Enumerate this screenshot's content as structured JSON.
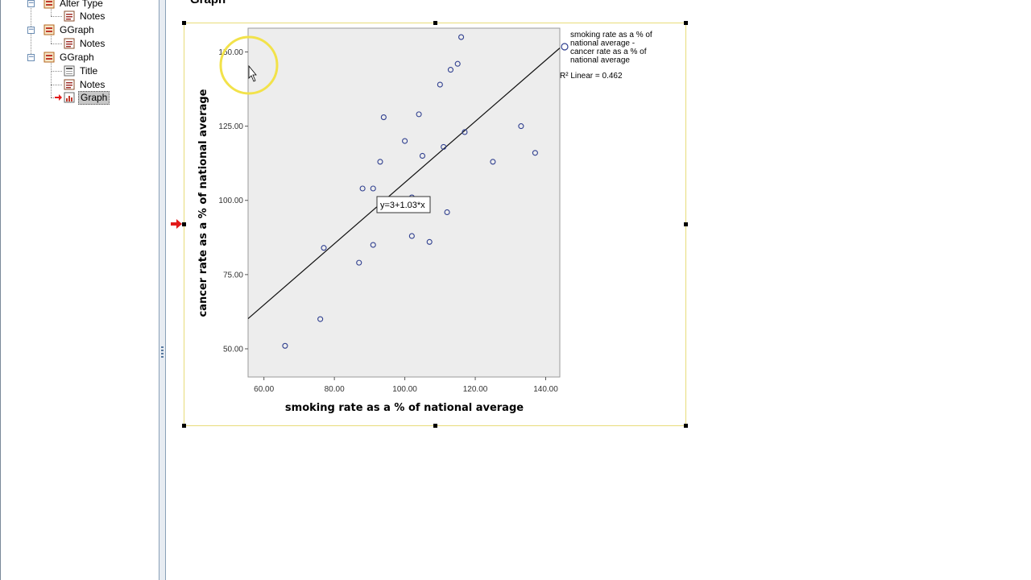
{
  "outline": {
    "items": [
      {
        "label": "Alter Type",
        "icon": "procedure-icon",
        "level": 1,
        "expanded": true
      },
      {
        "label": "Notes",
        "icon": "notes-icon",
        "level": 2
      },
      {
        "label": "GGraph",
        "icon": "procedure-icon",
        "level": 1,
        "expanded": true
      },
      {
        "label": "Notes",
        "icon": "notes-icon",
        "level": 2
      },
      {
        "label": "GGraph",
        "icon": "procedure-icon",
        "level": 1,
        "expanded": true
      },
      {
        "label": "Title",
        "icon": "title-icon",
        "level": 2
      },
      {
        "label": "Notes",
        "icon": "notes-icon",
        "level": 2
      },
      {
        "label": "Graph",
        "icon": "graph-icon",
        "level": 2,
        "selected": true
      }
    ]
  },
  "content": {
    "heading": "Graph"
  },
  "colors": {
    "plot_background": "#ededed",
    "marker": "#2f3f8f",
    "frame_border": "#e8dc7a",
    "highlight_ring": "#f2e24a",
    "arrow_red": "#e21a1a"
  },
  "chart_data": {
    "type": "scatter",
    "xlabel": "smoking rate as a % of national average",
    "ylabel": "cancer rate as a % of national average",
    "xticks": [
      "60.00",
      "80.00",
      "100.00",
      "120.00",
      "140.00"
    ],
    "yticks": [
      "50.00",
      "75.00",
      "100.00",
      "125.00",
      "150.00"
    ],
    "xlim": [
      55.5,
      144
    ],
    "ylim": [
      40.5,
      158
    ],
    "grid": false,
    "series": [
      {
        "name": "smoking rate as a % of national average - cancer rate as a % of national average",
        "x": [
          66,
          76,
          77,
          87,
          88,
          91,
          91,
          93,
          94,
          100,
          102,
          102,
          104,
          105,
          107,
          110,
          111,
          112,
          113,
          115,
          116,
          117,
          125,
          133,
          137
        ],
        "y": [
          51,
          60,
          84,
          79,
          104,
          104,
          85,
          113,
          128,
          120,
          101,
          88,
          129,
          115,
          86,
          139,
          118,
          96,
          144,
          146,
          155,
          123,
          113,
          125,
          116
        ]
      }
    ],
    "fit_line": {
      "intercept": 3,
      "slope": 1.03,
      "label": "y=3+1.03*x"
    },
    "r_squared_label": "R² Linear = 0.462",
    "legend_position": "right"
  }
}
